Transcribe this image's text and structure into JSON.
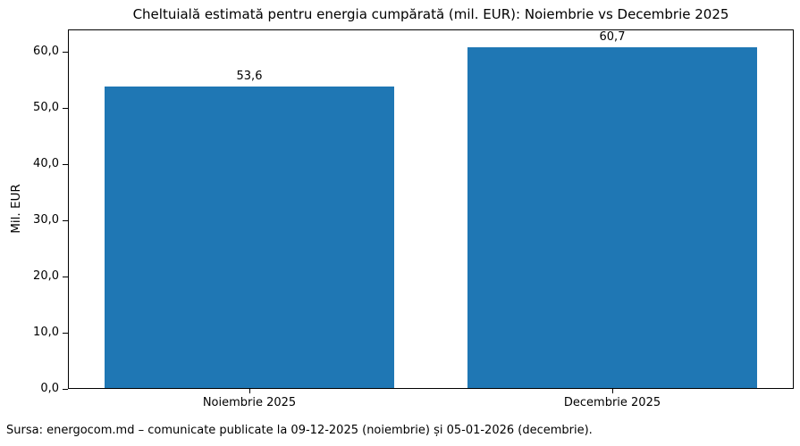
{
  "source_note": "Sursa: energocom.md – comunicate publicate la 09-12-2025 (noiembrie) și 05-01-2026 (decembrie).",
  "chart_data": {
    "type": "bar",
    "title": "Cheltuială estimată pentru energia cumpărată (mil. EUR): Noiembrie vs Decembrie 2025",
    "categories": [
      "Noiembrie 2025",
      "Decembrie 2025"
    ],
    "values": [
      53.6,
      60.7
    ],
    "value_labels": [
      "53,6",
      "60,7"
    ],
    "xlabel": "",
    "ylabel": "Mil. EUR",
    "ylim": [
      0,
      64
    ],
    "yticks": [
      0,
      10,
      20,
      30,
      40,
      50,
      60
    ],
    "ytick_labels": [
      "0,0",
      "10,0",
      "20,0",
      "30,0",
      "40,0",
      "50,0",
      "60,0"
    ],
    "bar_color": "#1f77b4",
    "grid": false,
    "legend": null
  }
}
